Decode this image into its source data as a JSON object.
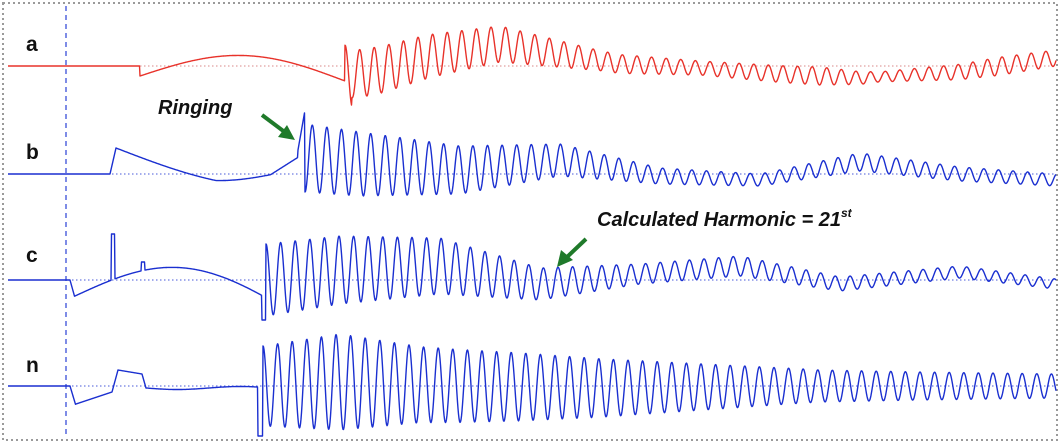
{
  "chart_data": {
    "type": "line",
    "title": "",
    "xlabel": "",
    "ylabel": "",
    "grid": false,
    "colors": {
      "a": "#e8322a",
      "b": "#1a2fd0",
      "c": "#1a2fd0",
      "n": "#1a2fd0",
      "arrow": "#1f7a2a",
      "frame": "#9a9a9a",
      "baseline": "#d06a6a",
      "marker": "#2a3fd6"
    },
    "series": [
      {
        "name": "a",
        "color": "#e8322a"
      },
      {
        "name": "b",
        "color": "#1a2fd0"
      },
      {
        "name": "c",
        "color": "#1a2fd0"
      },
      {
        "name": "n",
        "color": "#1a2fd0"
      }
    ],
    "annotations": {
      "ringing": "Ringing",
      "harmonic_main": "Calculated Harmonic = 21",
      "harmonic_sup": "st"
    }
  }
}
